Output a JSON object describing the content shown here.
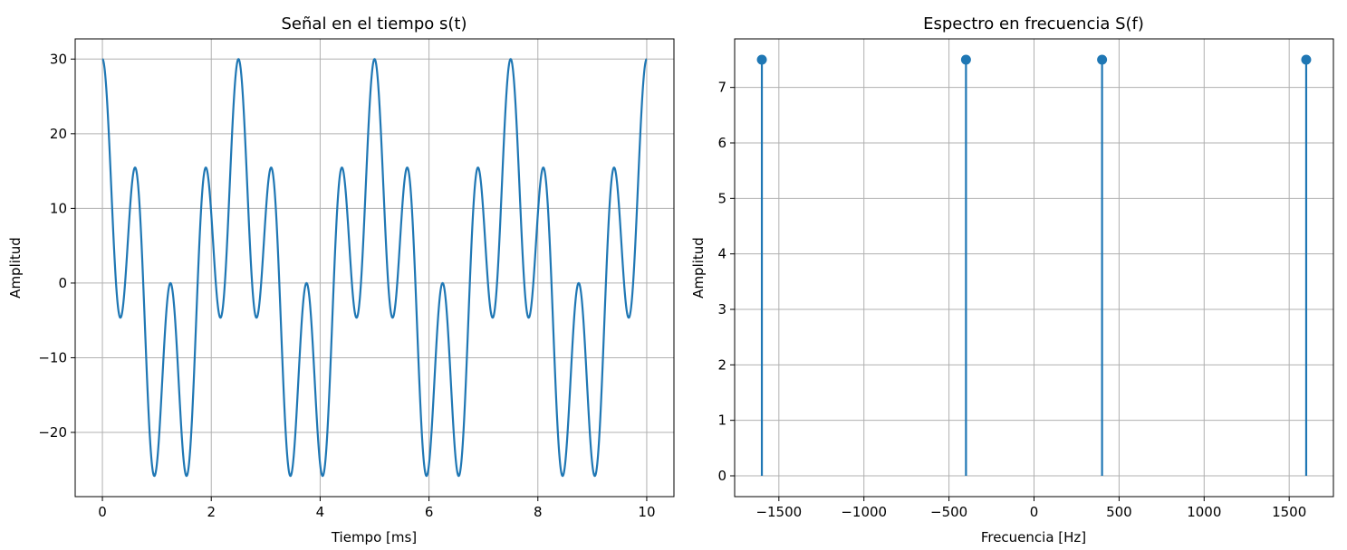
{
  "chart_data": [
    {
      "type": "line",
      "title": "Señal en el tiempo s(t)",
      "xlabel": "Tiempo [ms]",
      "ylabel": "Amplitud",
      "xlim": [
        -0.5,
        10.5
      ],
      "ylim": [
        -28.6,
        32.7
      ],
      "xticks": [
        0,
        2,
        4,
        6,
        8,
        10
      ],
      "xtick_labels": [
        "0",
        "2",
        "4",
        "6",
        "8",
        "10"
      ],
      "yticks": [
        -20,
        -10,
        0,
        10,
        20,
        30
      ],
      "ytick_labels": [
        "−20",
        "−10",
        "0",
        "10",
        "20",
        "30"
      ],
      "grid": true,
      "color": "#1f77b4",
      "series": [
        {
          "x_range_ms": [
            0,
            10
          ],
          "components": [
            {
              "amplitude": 15,
              "frequency_hz": 400
            },
            {
              "amplitude": 15,
              "frequency_hz": 1600
            }
          ]
        }
      ]
    },
    {
      "type": "stem",
      "title": "Espectro en frecuencia S(f)",
      "xlabel": "Frecuencia [Hz]",
      "ylabel": "Amplitud",
      "xlim": [
        -1760,
        1760
      ],
      "ylim": [
        -0.375,
        7.875
      ],
      "xticks": [
        -1500,
        -1000,
        -500,
        0,
        500,
        1000,
        1500
      ],
      "xtick_labels": [
        "−1500",
        "−1000",
        "−500",
        "0",
        "500",
        "1000",
        "1500"
      ],
      "yticks": [
        0,
        1,
        2,
        3,
        4,
        5,
        6,
        7
      ],
      "ytick_labels": [
        "0",
        "1",
        "2",
        "3",
        "4",
        "5",
        "6",
        "7"
      ],
      "grid": true,
      "color": "#1f77b4",
      "x": [
        -1600,
        -400,
        400,
        1600
      ],
      "values": [
        7.5,
        7.5,
        7.5,
        7.5
      ]
    }
  ]
}
